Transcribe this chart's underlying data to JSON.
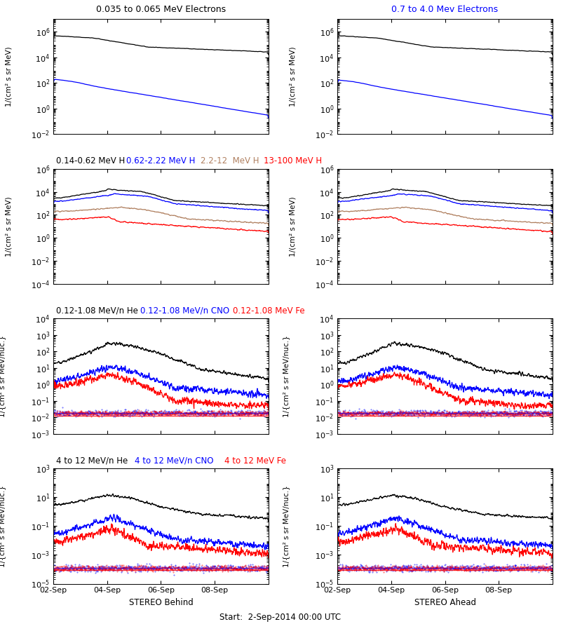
{
  "title_left": "0.035 to 0.065 MeV Electrons",
  "title_right": "0.7 to 4.0 Mev Electrons",
  "row1_ylabel": "1/(cm² s sr MeV)",
  "row2_titles": [
    "0.14-0.62 MeV H",
    "0.62-2.22 MeV H",
    "2.2-12  MeV H",
    "13-100 MeV H"
  ],
  "row2_title_colors": [
    "black",
    "blue",
    "#b08060",
    "red"
  ],
  "row3_titles": [
    "0.12-1.08 MeV/n He",
    "0.12-1.08 MeV/n CNO",
    "0.12-1.08 MeV Fe"
  ],
  "row3_title_colors": [
    "black",
    "blue",
    "red"
  ],
  "row3_ylabel": "1/{cm² s sr MeV/nuc.}",
  "row4_titles": [
    "4 to 12 MeV/n He",
    "4 to 12 MeV/n CNO",
    "4 to 12 MeV Fe"
  ],
  "row4_title_colors": [
    "black",
    "blue",
    "red"
  ],
  "xlabel_left": "STEREO Behind",
  "xlabel_center": "Start:  2-Sep-2014 00:00 UTC",
  "xlabel_right": "STEREO Ahead",
  "date_ticks": [
    "02-Sep",
    "04-Sep",
    "06-Sep",
    "08-Sep"
  ],
  "n_days": 8,
  "seed": 42
}
